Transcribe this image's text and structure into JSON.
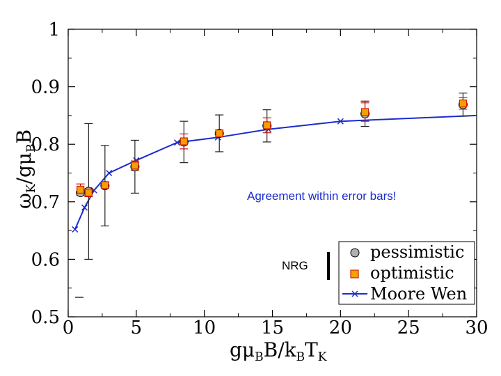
{
  "chart_data": {
    "type": "scatter",
    "xlim": [
      0,
      30
    ],
    "ylim": [
      0.5,
      1.0
    ],
    "x_ticks": [
      "0",
      "5",
      "10",
      "15",
      "20",
      "25",
      "30"
    ],
    "y_ticks": [
      "0.5",
      "0.6",
      "0.7",
      "0.8",
      "0.9",
      "1"
    ],
    "xlabel": {
      "main": "gμ",
      "sub1": "B",
      "mid": "B/k",
      "sub2": "B",
      "end": "T",
      "sub3": "K"
    },
    "ylabel": {
      "main": "ω",
      "sub1": "K",
      "mid": "/gμ",
      "sub2": "B",
      "end": "B"
    },
    "series": [
      {
        "name": "pessimistic",
        "marker": "circle",
        "color": "#b0b0b0",
        "points": [
          {
            "x": 0.9,
            "y": 0.716,
            "err": 0.0
          },
          {
            "x": 1.5,
            "y": 0.718,
            "err": 0.118
          },
          {
            "x": 2.7,
            "y": 0.728,
            "err": 0.07
          },
          {
            "x": 4.9,
            "y": 0.761,
            "err": 0.046
          },
          {
            "x": 8.5,
            "y": 0.804,
            "err": 0.036
          },
          {
            "x": 11.1,
            "y": 0.819,
            "err": 0.032
          },
          {
            "x": 14.6,
            "y": 0.832,
            "err": 0.028
          },
          {
            "x": 21.8,
            "y": 0.853,
            "err": 0.022
          },
          {
            "x": 29.0,
            "y": 0.869,
            "err": 0.02
          }
        ]
      },
      {
        "name": "optimistic",
        "marker": "square",
        "color": "#f5a000",
        "points": [
          {
            "x": 0.9,
            "y": 0.721,
            "err": 0.01
          },
          {
            "x": 1.5,
            "y": 0.716,
            "err": 0.007
          },
          {
            "x": 2.7,
            "y": 0.729,
            "err": 0.005
          },
          {
            "x": 4.9,
            "y": 0.763,
            "err": 0.008
          },
          {
            "x": 8.5,
            "y": 0.805,
            "err": 0.013
          },
          {
            "x": 11.1,
            "y": 0.819,
            "err": 0.006
          },
          {
            "x": 14.6,
            "y": 0.833,
            "err": 0.013
          },
          {
            "x": 21.8,
            "y": 0.856,
            "err": 0.016
          },
          {
            "x": 29.0,
            "y": 0.871,
            "err": 0.01
          }
        ]
      },
      {
        "name": "Moore Wen",
        "marker": "x-line",
        "color": "#1a2ccc",
        "points": [
          {
            "x": 0.5,
            "y": 0.652
          },
          {
            "x": 1.2,
            "y": 0.69
          },
          {
            "x": 1.9,
            "y": 0.72
          },
          {
            "x": 3.0,
            "y": 0.75
          },
          {
            "x": 5.0,
            "y": 0.772
          },
          {
            "x": 8.0,
            "y": 0.803
          },
          {
            "x": 11.0,
            "y": 0.812
          },
          {
            "x": 14.7,
            "y": 0.826
          },
          {
            "x": 20.0,
            "y": 0.84
          },
          {
            "x": 25.0,
            "y": 0.845
          },
          {
            "x": 30.0,
            "y": 0.85
          }
        ]
      }
    ],
    "annotations": [
      {
        "text": "Agreement within error bars!",
        "color": "#1a2ccc"
      },
      {
        "text": "NRG",
        "color": "#000000"
      }
    ],
    "legend_position": "bottom-right"
  }
}
